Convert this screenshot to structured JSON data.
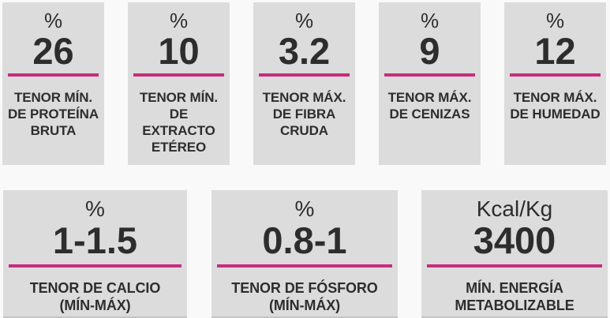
{
  "theme": {
    "accent": "#c62d7d",
    "card_bg": "#dcdcdc",
    "page_bg": "#f9f9f9",
    "text": "#2d2d2d"
  },
  "cards": {
    "top": [
      {
        "unit": "%",
        "value": "26",
        "label": "TENOR MÍN.\nDE PROTEÍNA\nBRUTA"
      },
      {
        "unit": "%",
        "value": "10",
        "label": "TENOR MÍN.\nDE\nEXTRACTO\nETÉREO"
      },
      {
        "unit": "%",
        "value": "3.2",
        "label": "TENOR MÁX.\nDE FIBRA\nCRUDA"
      },
      {
        "unit": "%",
        "value": "9",
        "label": "TENOR MÁX.\nDE CENIZAS"
      },
      {
        "unit": "%",
        "value": "12",
        "label": "TENOR MÁX.\nDE HUMEDAD"
      }
    ],
    "bottom": [
      {
        "unit": "%",
        "value": "1-1.5",
        "label": "TENOR DE CALCIO\n(MÍN-MÁX)"
      },
      {
        "unit": "%",
        "value": "0.8-1",
        "label": "TENOR DE FÓSFORO\n(MÍN-MÁX)"
      },
      {
        "unit": "Kcal/Kg",
        "value": "3400",
        "label": "MÍN. ENERGÍA\nMETABOLIZABLE"
      }
    ]
  }
}
